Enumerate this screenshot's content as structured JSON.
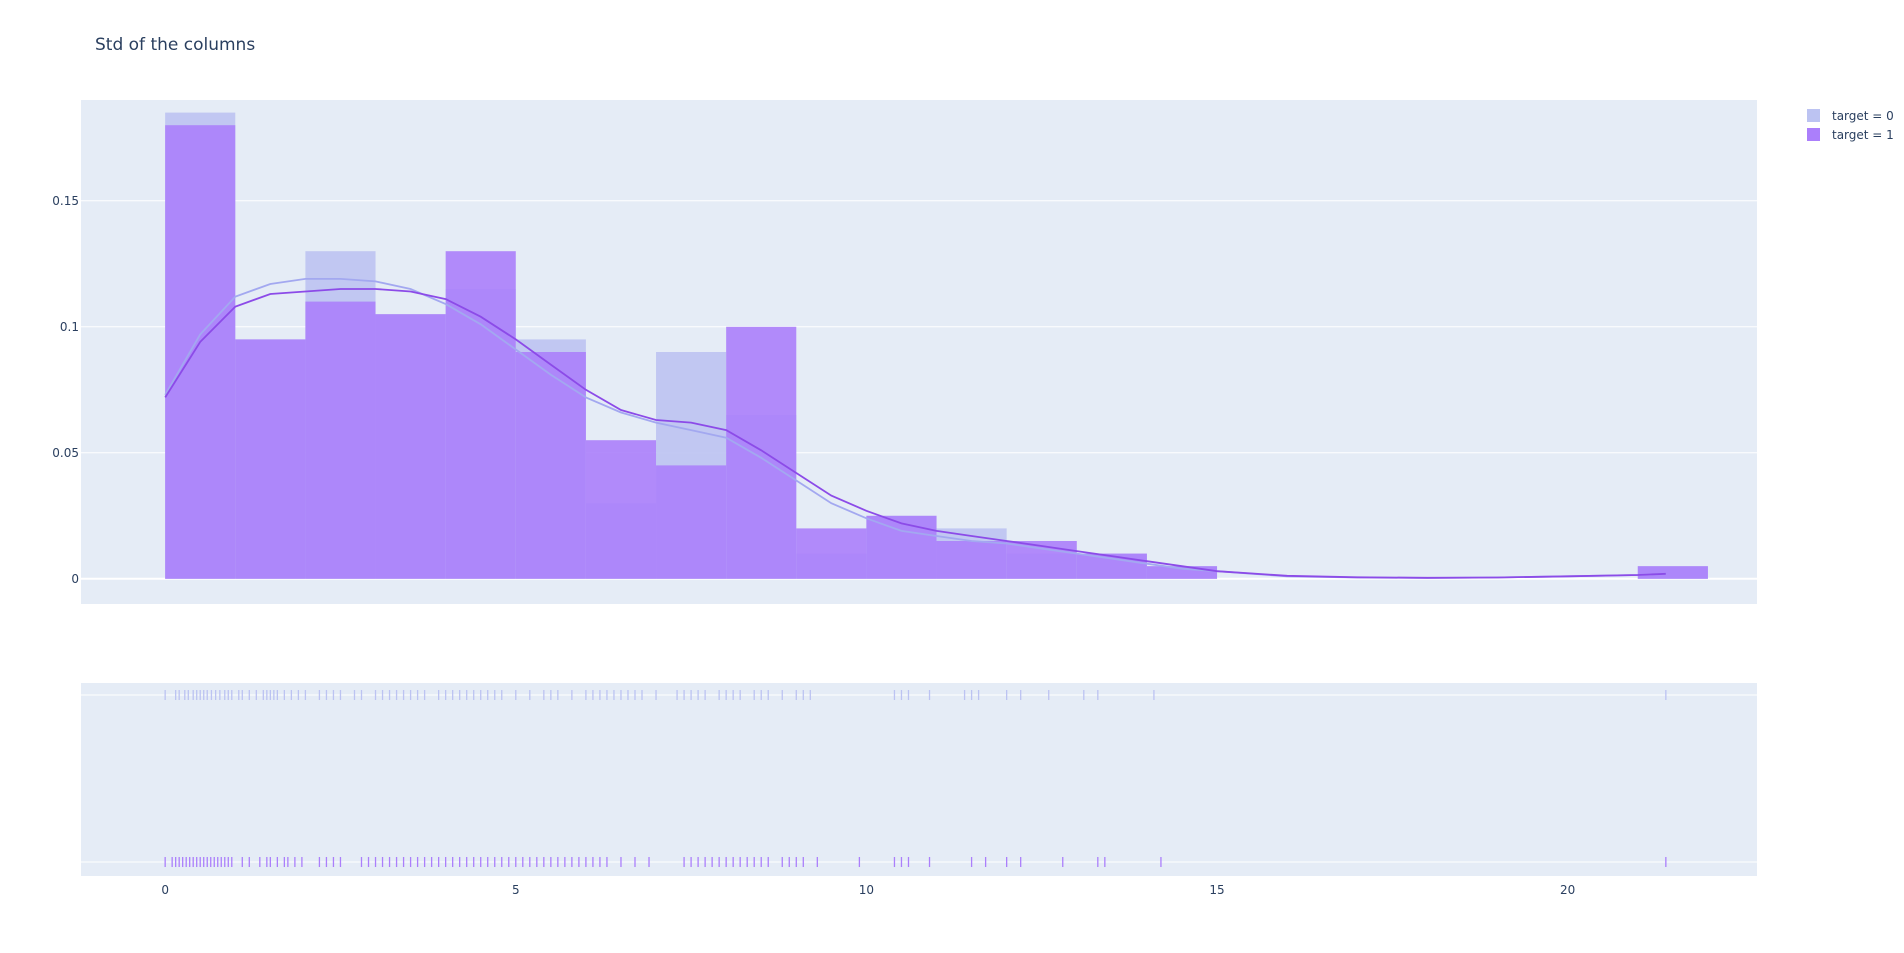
{
  "chart_data": {
    "type": "histogram",
    "title": "Std of the columns",
    "xlabel": "",
    "ylabel": "",
    "hist_ylim": [
      -0.01,
      0.19
    ],
    "xlim": [
      -1.2,
      22.7
    ],
    "x_ticks": [
      0,
      5,
      10,
      15,
      20
    ],
    "y_ticks": [
      0,
      0.05,
      0.1,
      0.15
    ],
    "y_tick_labels": [
      "0",
      "0.05",
      "0.1",
      "0.15"
    ],
    "x_tick_labels": [
      "0",
      "5",
      "10",
      "15",
      "20"
    ],
    "bin_edges": [
      0,
      1,
      2,
      3,
      4,
      5,
      6,
      7,
      8,
      9,
      10,
      11,
      12,
      13,
      14,
      15,
      16,
      17,
      18,
      19,
      20,
      21,
      22
    ],
    "legend_position": "top-right",
    "grid": true,
    "series": [
      {
        "name": "target = 0",
        "color": "#bcc3f2",
        "hist_values": [
          0.185,
          0.095,
          0.13,
          0.105,
          0.115,
          0.095,
          0.03,
          0.09,
          0.065,
          0.01,
          0.025,
          0.02,
          0.01,
          0.01,
          0.005,
          0,
          0,
          0,
          0,
          0,
          0,
          0.005
        ],
        "kde_x": [
          0,
          0.5,
          1,
          1.5,
          2,
          2.5,
          3,
          3.5,
          4,
          4.5,
          5,
          5.5,
          6,
          6.5,
          7,
          7.5,
          8,
          8.5,
          9,
          9.5,
          10,
          10.5,
          11,
          11.5,
          12,
          12.5,
          13,
          13.5,
          14,
          14.5,
          15,
          16,
          17,
          18,
          19,
          20,
          21,
          21.4
        ],
        "kde_y": [
          0.073,
          0.097,
          0.112,
          0.117,
          0.119,
          0.119,
          0.118,
          0.115,
          0.109,
          0.101,
          0.091,
          0.081,
          0.072,
          0.066,
          0.062,
          0.059,
          0.056,
          0.048,
          0.039,
          0.03,
          0.024,
          0.019,
          0.017,
          0.015,
          0.014,
          0.012,
          0.01,
          0.008,
          0.006,
          0.004,
          0.003,
          0.001,
          0.0005,
          0.0003,
          0.0005,
          0.001,
          0.0015,
          0.002
        ],
        "rug": [
          0,
          0.15,
          0.2,
          0.28,
          0.33,
          0.4,
          0.45,
          0.5,
          0.55,
          0.6,
          0.66,
          0.72,
          0.78,
          0.85,
          0.9,
          0.95,
          1.05,
          1.1,
          1.2,
          1.3,
          1.4,
          1.45,
          1.5,
          1.55,
          1.6,
          1.7,
          1.8,
          1.9,
          2.0,
          2.2,
          2.3,
          2.4,
          2.5,
          2.7,
          2.8,
          3.0,
          3.1,
          3.2,
          3.3,
          3.4,
          3.5,
          3.6,
          3.7,
          3.9,
          4.0,
          4.1,
          4.2,
          4.3,
          4.4,
          4.5,
          4.6,
          4.7,
          4.8,
          5.0,
          5.2,
          5.4,
          5.5,
          5.6,
          5.8,
          6.0,
          6.1,
          6.2,
          6.3,
          6.4,
          6.5,
          6.6,
          6.7,
          6.8,
          7.0,
          7.3,
          7.4,
          7.5,
          7.6,
          7.7,
          7.9,
          8.0,
          8.1,
          8.2,
          8.4,
          8.5,
          8.6,
          8.8,
          9.0,
          9.1,
          9.2,
          10.4,
          10.5,
          10.6,
          10.9,
          11.4,
          11.5,
          11.6,
          12.0,
          12.2,
          12.6,
          13.1,
          13.3,
          14.1,
          21.4
        ]
      },
      {
        "name": "target = 1",
        "color": "#ab7ffb",
        "hist_values": [
          0.18,
          0.095,
          0.11,
          0.105,
          0.13,
          0.09,
          0.055,
          0.045,
          0.1,
          0.02,
          0.025,
          0.015,
          0.015,
          0.01,
          0.005,
          0,
          0,
          0,
          0,
          0,
          0,
          0.005
        ],
        "kde_x": [
          0,
          0.5,
          1,
          1.5,
          2,
          2.5,
          3,
          3.5,
          4,
          4.5,
          5,
          5.5,
          6,
          6.5,
          7,
          7.5,
          8,
          8.5,
          9,
          9.5,
          10,
          10.5,
          11,
          11.5,
          12,
          12.5,
          13,
          13.5,
          14,
          14.5,
          15,
          16,
          17,
          18,
          19,
          20,
          21,
          21.4
        ],
        "kde_y": [
          0.072,
          0.094,
          0.108,
          0.113,
          0.114,
          0.115,
          0.115,
          0.114,
          0.111,
          0.104,
          0.095,
          0.085,
          0.075,
          0.067,
          0.063,
          0.062,
          0.059,
          0.051,
          0.042,
          0.033,
          0.027,
          0.022,
          0.019,
          0.017,
          0.015,
          0.013,
          0.011,
          0.009,
          0.007,
          0.005,
          0.003,
          0.0012,
          0.0006,
          0.0004,
          0.0005,
          0.001,
          0.0015,
          0.002
        ],
        "rug": [
          0,
          0.1,
          0.15,
          0.2,
          0.25,
          0.3,
          0.35,
          0.4,
          0.45,
          0.5,
          0.55,
          0.6,
          0.65,
          0.7,
          0.75,
          0.8,
          0.85,
          0.9,
          0.95,
          1.1,
          1.2,
          1.35,
          1.45,
          1.5,
          1.6,
          1.7,
          1.75,
          1.85,
          1.95,
          2.2,
          2.3,
          2.4,
          2.5,
          2.8,
          2.9,
          3.0,
          3.1,
          3.2,
          3.3,
          3.4,
          3.5,
          3.6,
          3.7,
          3.8,
          3.9,
          4.0,
          4.1,
          4.2,
          4.3,
          4.4,
          4.5,
          4.6,
          4.7,
          4.8,
          4.9,
          5.0,
          5.1,
          5.2,
          5.3,
          5.4,
          5.5,
          5.6,
          5.7,
          5.8,
          5.9,
          6.0,
          6.1,
          6.2,
          6.3,
          6.5,
          6.7,
          6.9,
          7.4,
          7.5,
          7.6,
          7.7,
          7.8,
          7.9,
          8.0,
          8.1,
          8.2,
          8.3,
          8.4,
          8.5,
          8.6,
          8.8,
          8.9,
          9.0,
          9.1,
          9.3,
          9.9,
          10.4,
          10.5,
          10.6,
          10.9,
          11.5,
          11.7,
          12.0,
          12.2,
          12.8,
          13.3,
          13.4,
          14.2,
          21.4
        ]
      }
    ]
  }
}
